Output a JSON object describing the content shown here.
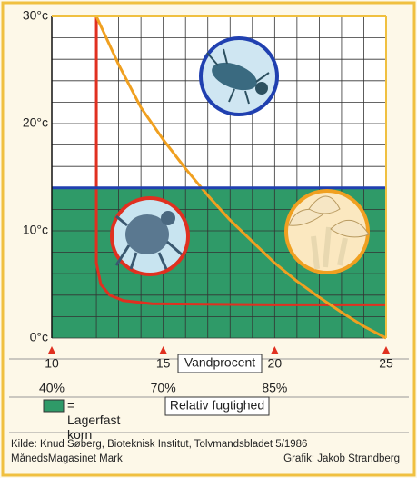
{
  "chart_data": {
    "type": "line",
    "xlim": [
      10,
      25
    ],
    "ylim": [
      0,
      30
    ],
    "xticks": [
      10,
      15,
      20,
      25
    ],
    "yticks": [
      {
        "value": 0,
        "label": "0°c"
      },
      {
        "value": 10,
        "label": "10°c"
      },
      {
        "value": 20,
        "label": "20°c"
      },
      {
        "value": 30,
        "label": "30°c"
      }
    ],
    "xgrid": [
      10,
      11,
      12,
      13,
      14,
      15,
      16,
      17,
      18,
      19,
      20,
      21,
      22,
      23,
      24,
      25
    ],
    "ygrid": [
      0,
      2,
      4,
      6,
      8,
      10,
      12,
      14,
      16,
      18,
      20,
      22,
      24,
      26,
      28,
      30
    ],
    "xlabel": "Vandprocent",
    "humidity_ticks": [
      {
        "value": 10,
        "label": "40%"
      },
      {
        "value": 15,
        "label": "70%"
      },
      {
        "value": 20,
        "label": "85%"
      }
    ],
    "humidity_label": "Relativ fugtighed",
    "series": [
      {
        "color": "#e03020",
        "x": [
          12,
          12,
          12.2,
          12.6,
          13.2,
          14.5,
          20,
          25
        ],
        "values": [
          30,
          7,
          5,
          4,
          3.5,
          3.2,
          3.1,
          3.1
        ]
      },
      {
        "color": "#f0a020",
        "x": [
          12,
          13,
          14,
          15,
          16,
          17,
          18,
          19,
          20,
          21,
          22,
          23,
          24,
          25
        ],
        "values": [
          30,
          25.5,
          21.5,
          18.5,
          15.8,
          13.3,
          11,
          9,
          7,
          5.3,
          3.8,
          2.4,
          1.1,
          0
        ]
      },
      {
        "color": "#2040b0",
        "x": [
          10,
          25
        ],
        "values": [
          14,
          14
        ]
      }
    ],
    "region": {
      "label": "= Lagerfast korn",
      "color": "#2f9a68",
      "ymax": 14
    },
    "source": [
      "Kilde: Knud Søberg, Bioteknisk Institut, Tolvmandsbladet 5/1986",
      "MånedsMagasinet Mark",
      "Grafik: Jakob Strandberg"
    ]
  }
}
